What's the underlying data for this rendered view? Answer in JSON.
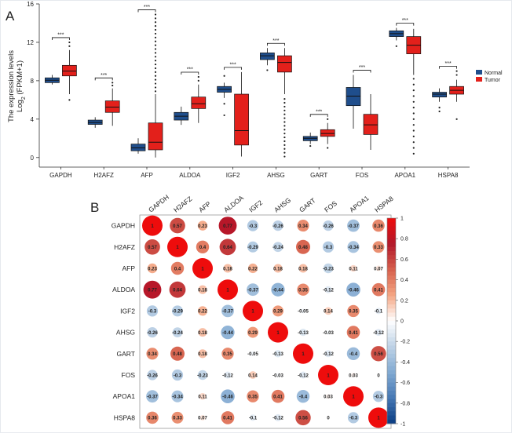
{
  "colors": {
    "normal": "#1f4e8c",
    "tumor": "#e3201b",
    "frame": "#e6e9ee"
  },
  "chart_data": [
    {
      "panel_label": "A",
      "type": "box",
      "ylabel": "The expression levels",
      "ylabel2": "Log2 (FPKM+1)",
      "ylim": [
        -1,
        16
      ],
      "yticks": [
        0,
        4,
        8,
        12,
        16
      ],
      "categories": [
        "GAPDH",
        "H2AFZ",
        "AFP",
        "ALDOA",
        "IGF2",
        "AHSG",
        "GART",
        "FOS",
        "APOA1",
        "HSPA8"
      ],
      "significance": [
        "***",
        "***",
        "***",
        "***",
        "***",
        "***",
        "***",
        "***",
        "***",
        "***"
      ],
      "legend": {
        "position": "top-right",
        "entries": [
          "Normal",
          "Tumor"
        ]
      },
      "series": [
        {
          "name": "Normal",
          "boxes": [
            {
              "min": 7.6,
              "q1": 7.8,
              "median": 8.05,
              "q3": 8.3,
              "max": 8.6,
              "outliers": []
            },
            {
              "min": 3.1,
              "q1": 3.45,
              "median": 3.65,
              "q3": 3.9,
              "max": 4.2,
              "outliers": []
            },
            {
              "min": 0.4,
              "q1": 0.7,
              "median": 1.0,
              "q3": 1.4,
              "max": 2.0,
              "outliers": []
            },
            {
              "min": 3.4,
              "q1": 3.9,
              "median": 4.3,
              "q3": 4.7,
              "max": 5.3,
              "outliers": []
            },
            {
              "min": 6.2,
              "q1": 6.8,
              "median": 7.1,
              "q3": 7.4,
              "max": 7.8,
              "outliers": [
                4.4,
                5.6,
                8.5
              ]
            },
            {
              "min": 9.6,
              "q1": 10.2,
              "median": 10.6,
              "q3": 10.9,
              "max": 11.4,
              "outliers": [
                9.1
              ]
            },
            {
              "min": 1.4,
              "q1": 1.75,
              "median": 2.0,
              "q3": 2.2,
              "max": 2.6,
              "outliers": [
                1.2
              ]
            },
            {
              "min": 3.0,
              "q1": 5.4,
              "median": 6.4,
              "q3": 7.3,
              "max": 8.6,
              "outliers": []
            },
            {
              "min": 12.2,
              "q1": 12.6,
              "median": 12.9,
              "q3": 13.2,
              "max": 13.5,
              "outliers": [
                11.6
              ]
            },
            {
              "min": 5.8,
              "q1": 6.3,
              "median": 6.6,
              "q3": 6.8,
              "max": 7.2,
              "outliers": [
                4.8,
                5.2
              ]
            }
          ]
        },
        {
          "name": "Tumor",
          "boxes": [
            {
              "min": 6.6,
              "q1": 8.5,
              "median": 9.0,
              "q3": 9.6,
              "max": 11.2,
              "outliers": [
                6.0,
                11.6,
                12.0
              ]
            },
            {
              "min": 3.3,
              "q1": 4.7,
              "median": 5.25,
              "q3": 5.9,
              "max": 7.2,
              "outliers": [
                7.5,
                7.8
              ]
            },
            {
              "min": 0.0,
              "q1": 0.8,
              "median": 1.6,
              "q3": 3.6,
              "max": 6.6,
              "outliers": [
                6.9,
                7.3,
                7.7,
                8.1,
                8.5,
                8.9,
                9.3,
                9.7,
                10.1,
                10.5,
                10.9,
                11.3,
                11.7,
                12.1,
                12.5,
                12.9,
                13.3,
                13.7,
                14.1,
                14.5,
                14.9
              ]
            },
            {
              "min": 3.6,
              "q1": 5.1,
              "median": 5.6,
              "q3": 6.3,
              "max": 7.6,
              "outliers": [
                8.0,
                8.4
              ]
            },
            {
              "min": 0.1,
              "q1": 1.3,
              "median": 2.8,
              "q3": 6.6,
              "max": 8.9,
              "outliers": []
            },
            {
              "min": 6.6,
              "q1": 8.9,
              "median": 9.9,
              "q3": 10.6,
              "max": 11.4,
              "outliers": [
                0.1,
                0.5,
                0.9,
                1.3,
                1.7,
                2.1,
                2.5,
                2.9,
                3.3,
                3.7,
                4.1,
                4.5,
                4.9,
                5.3,
                5.7,
                6.1
              ]
            },
            {
              "min": 1.4,
              "q1": 2.2,
              "median": 2.5,
              "q3": 2.9,
              "max": 3.6,
              "outliers": [
                1.0,
                4.0
              ]
            },
            {
              "min": 0.8,
              "q1": 2.4,
              "median": 3.4,
              "q3": 4.5,
              "max": 6.6,
              "outliers": []
            },
            {
              "min": 8.6,
              "q1": 10.8,
              "median": 11.7,
              "q3": 12.6,
              "max": 13.4,
              "outliers": [
                0.4,
                1.0,
                1.6,
                2.2,
                2.8,
                3.4,
                4.0,
                4.6,
                5.2,
                5.8,
                6.4,
                7.0,
                7.6,
                8.2
              ]
            },
            {
              "min": 5.8,
              "q1": 6.6,
              "median": 7.0,
              "q3": 7.4,
              "max": 8.1,
              "outliers": [
                4.0,
                8.6,
                9.0
              ]
            }
          ]
        }
      ]
    },
    {
      "panel_label": "B",
      "type": "heatmap",
      "labels": [
        "GAPDH",
        "H2AFZ",
        "AFP",
        "ALDOA",
        "IGF2",
        "AHSG",
        "GART",
        "FOS",
        "APOA1",
        "HSPA8"
      ],
      "colorbar_range": [
        -1,
        1
      ],
      "colorbar_ticks": [
        "1",
        "0.8",
        "0.6",
        "0.4",
        "0.2",
        "0",
        "-0.2",
        "-0.4",
        "-0.6",
        "-0.8",
        "-1"
      ],
      "matrix": [
        [
          1,
          0.57,
          0.23,
          0.77,
          -0.3,
          -0.26,
          0.34,
          -0.26,
          -0.37,
          0.36
        ],
        [
          0.57,
          1,
          0.4,
          0.64,
          -0.29,
          -0.24,
          0.48,
          -0.3,
          -0.34,
          0.33
        ],
        [
          0.23,
          0.4,
          1,
          0.18,
          0.22,
          0.18,
          0.18,
          -0.23,
          0.11,
          0.07
        ],
        [
          0.77,
          0.64,
          0.18,
          1,
          -0.37,
          -0.44,
          0.35,
          -0.12,
          -0.46,
          0.41
        ],
        [
          -0.3,
          -0.29,
          0.22,
          -0.37,
          1,
          0.29,
          -0.05,
          0.14,
          0.35,
          -0.1
        ],
        [
          -0.26,
          -0.24,
          0.18,
          -0.44,
          0.29,
          1,
          -0.13,
          -0.03,
          0.41,
          -0.12
        ],
        [
          0.34,
          0.48,
          0.18,
          0.35,
          -0.05,
          -0.13,
          1,
          -0.12,
          -0.4,
          0.56
        ],
        [
          -0.26,
          -0.3,
          -0.23,
          -0.12,
          0.14,
          -0.03,
          -0.12,
          1,
          0.03,
          0
        ],
        [
          -0.37,
          -0.34,
          0.11,
          -0.46,
          0.35,
          0.41,
          -0.4,
          0.03,
          1,
          -0.3
        ],
        [
          0.36,
          0.33,
          0.07,
          0.41,
          -0.1,
          -0.12,
          0.56,
          0,
          -0.3,
          1
        ]
      ]
    }
  ]
}
